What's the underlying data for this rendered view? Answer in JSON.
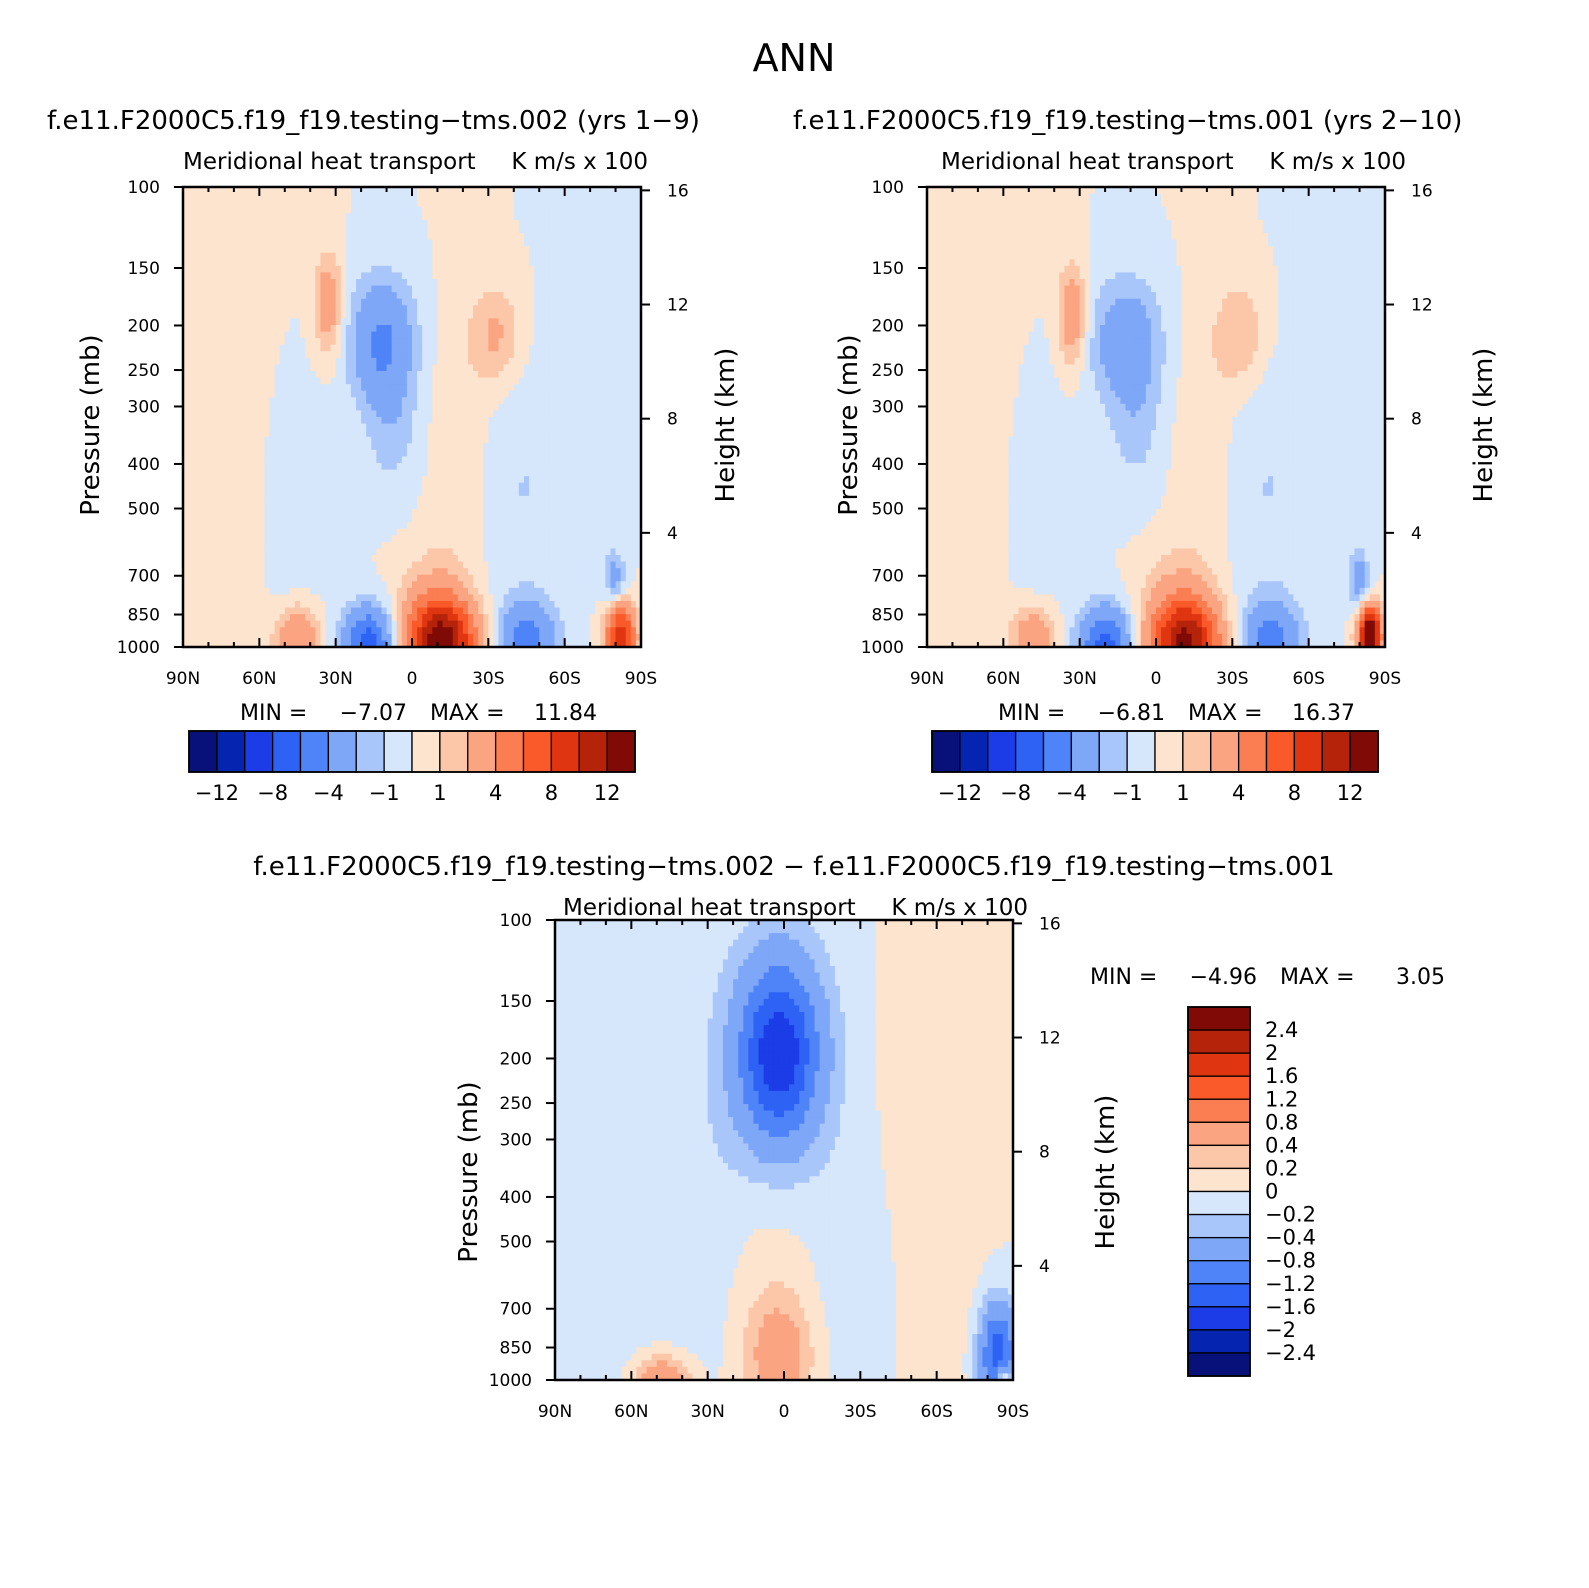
{
  "figure_title": "ANN",
  "colors": {
    "neg": [
      "#08107a",
      "#0524b0",
      "#1b3ce6",
      "#2e62f5",
      "#4f84f8",
      "#7ea7f8",
      "#a9c6fa",
      "#d6e6fb"
    ],
    "pos": [
      "#fde4cf",
      "#fcc6a8",
      "#fba482",
      "#fb7d52",
      "#fa5a2a",
      "#df3510",
      "#b5230a",
      "#7f0a06"
    ],
    "axis": "#000000"
  },
  "chart_data": [
    {
      "type": "heatmap",
      "title": "f.e11.F2000C5.f19_f19.testing−tms.002 (yrs 1−9)",
      "subtitle_left": "Meridional heat transport",
      "subtitle_right": "K m/s x 100",
      "ylabel": "Pressure (mb)",
      "ylabel_right": "Height (km)",
      "x_ticks": [
        "90N",
        "60N",
        "30N",
        "0",
        "30S",
        "60S",
        "90S"
      ],
      "x_range": [
        90,
        -90
      ],
      "y_ticks": [
        100,
        150,
        200,
        250,
        300,
        400,
        500,
        700,
        850,
        1000
      ],
      "y_range": [
        100,
        1000
      ],
      "y_scale": "log-pressure",
      "height_ticks": [
        4,
        8,
        12,
        16
      ],
      "min_label": "MIN =",
      "min_value": "−7.07",
      "max_label": "MAX =",
      "max_value": "11.84",
      "colorbar_levels": [
        -14,
        -12,
        -10,
        -8,
        -6,
        -4,
        -2,
        -1,
        0,
        1,
        2,
        4,
        6,
        8,
        10,
        12,
        14
      ],
      "colorbar_labels": [
        "−12",
        "−8",
        "−4",
        "−1",
        "1",
        "4",
        "8",
        "12"
      ],
      "colorbar_orientation": "horizontal",
      "features": [
        {
          "lat": 12,
          "p": 215,
          "value": -4.2,
          "wlat": 9,
          "wp": 0.22
        },
        {
          "lat": 8,
          "p": 330,
          "value": -1.4,
          "wlat": 8,
          "wp": 0.25
        },
        {
          "lat": 33,
          "p": 180,
          "value": 3.2,
          "wlat": 4,
          "wp": 0.18
        },
        {
          "lat": -33,
          "p": 210,
          "value": 2.2,
          "wlat": 7,
          "wp": 0.18
        },
        {
          "lat": -20,
          "p": 400,
          "value": 1.2,
          "wlat": 10,
          "wp": 0.5
        },
        {
          "lat": 50,
          "p": 500,
          "value": -1.2,
          "wlat": 10,
          "wp": 0.55
        },
        {
          "lat": -40,
          "p": 450,
          "value": -1.1,
          "wlat": 18,
          "wp": 0.45
        },
        {
          "lat": 70,
          "p": 450,
          "value": 1.1,
          "wlat": 16,
          "wp": 0.9
        },
        {
          "lat": 17,
          "p": 985,
          "value": -7.07,
          "wlat": 7,
          "wp": 0.13
        },
        {
          "lat": -12,
          "p": 975,
          "value": 11.84,
          "wlat": 9,
          "wp": 0.14
        },
        {
          "lat": -8,
          "p": 870,
          "value": 2.5,
          "wlat": 10,
          "wp": 0.22
        },
        {
          "lat": 45,
          "p": 960,
          "value": 4.2,
          "wlat": 6,
          "wp": 0.12
        },
        {
          "lat": -45,
          "p": 960,
          "value": -4.6,
          "wlat": 8,
          "wp": 0.13
        },
        {
          "lat": -82,
          "p": 950,
          "value": 9.5,
          "wlat": 4,
          "wp": 0.12
        },
        {
          "lat": -80,
          "p": 720,
          "value": -3.0,
          "wlat": 3,
          "wp": 0.1
        }
      ]
    },
    {
      "type": "heatmap",
      "title": "f.e11.F2000C5.f19_f19.testing−tms.001 (yrs 2−10)",
      "subtitle_left": "Meridional heat transport",
      "subtitle_right": "K m/s x 100",
      "ylabel": "Pressure (mb)",
      "ylabel_right": "Height (km)",
      "x_ticks": [
        "90N",
        "60N",
        "30N",
        "0",
        "30S",
        "60S",
        "90S"
      ],
      "x_range": [
        90,
        -90
      ],
      "y_ticks": [
        100,
        150,
        200,
        250,
        300,
        400,
        500,
        700,
        850,
        1000
      ],
      "y_range": [
        100,
        1000
      ],
      "y_scale": "log-pressure",
      "height_ticks": [
        4,
        8,
        12,
        16
      ],
      "min_label": "MIN =",
      "min_value": "−6.81",
      "max_label": "MAX =",
      "max_value": "16.37",
      "colorbar_levels": [
        -14,
        -12,
        -10,
        -8,
        -6,
        -4,
        -2,
        -1,
        0,
        1,
        2,
        4,
        6,
        8,
        10,
        12,
        14
      ],
      "colorbar_labels": [
        "−12",
        "−8",
        "−4",
        "−1",
        "1",
        "4",
        "8",
        "12"
      ],
      "colorbar_orientation": "horizontal",
      "features": [
        {
          "lat": 12,
          "p": 215,
          "value": -3.2,
          "wlat": 10,
          "wp": 0.22
        },
        {
          "lat": 8,
          "p": 330,
          "value": -1.3,
          "wlat": 8,
          "wp": 0.25
        },
        {
          "lat": 33,
          "p": 190,
          "value": 3.4,
          "wlat": 4,
          "wp": 0.18
        },
        {
          "lat": -33,
          "p": 210,
          "value": 2.0,
          "wlat": 7,
          "wp": 0.18
        },
        {
          "lat": -20,
          "p": 400,
          "value": 1.2,
          "wlat": 10,
          "wp": 0.5
        },
        {
          "lat": 50,
          "p": 500,
          "value": -1.2,
          "wlat": 10,
          "wp": 0.55
        },
        {
          "lat": -40,
          "p": 450,
          "value": -1.1,
          "wlat": 18,
          "wp": 0.45
        },
        {
          "lat": 70,
          "p": 450,
          "value": 1.1,
          "wlat": 16,
          "wp": 0.9
        },
        {
          "lat": 20,
          "p": 985,
          "value": -6.81,
          "wlat": 7,
          "wp": 0.13
        },
        {
          "lat": -12,
          "p": 975,
          "value": 10.5,
          "wlat": 9,
          "wp": 0.14
        },
        {
          "lat": -8,
          "p": 870,
          "value": 2.6,
          "wlat": 10,
          "wp": 0.22
        },
        {
          "lat": 48,
          "p": 960,
          "value": 3.8,
          "wlat": 6,
          "wp": 0.12
        },
        {
          "lat": -45,
          "p": 960,
          "value": -4.8,
          "wlat": 8,
          "wp": 0.13
        },
        {
          "lat": -84,
          "p": 950,
          "value": 16.37,
          "wlat": 3,
          "wp": 0.1
        },
        {
          "lat": -80,
          "p": 720,
          "value": -3.0,
          "wlat": 3,
          "wp": 0.1
        }
      ]
    },
    {
      "type": "heatmap",
      "title": "f.e11.F2000C5.f19_f19.testing−tms.002 − f.e11.F2000C5.f19_f19.testing−tms.001",
      "subtitle_left": "Meridional heat transport",
      "subtitle_right": "K m/s x 100",
      "ylabel": "Pressure (mb)",
      "ylabel_right": "Height (km)",
      "x_ticks": [
        "90N",
        "60N",
        "30N",
        "0",
        "30S",
        "60S",
        "90S"
      ],
      "x_range": [
        90,
        -90
      ],
      "y_ticks": [
        100,
        150,
        200,
        250,
        300,
        400,
        500,
        700,
        850,
        1000
      ],
      "y_range": [
        100,
        1000
      ],
      "y_scale": "log-pressure",
      "height_ticks": [
        4,
        8,
        12,
        16
      ],
      "min_label": "MIN =",
      "min_value": "−4.96",
      "max_label": "MAX =",
      "max_value": "3.05",
      "colorbar_levels": [
        -2.8,
        -2.4,
        -2,
        -1.6,
        -1.2,
        -0.8,
        -0.4,
        -0.2,
        0,
        0.2,
        0.4,
        0.8,
        1.2,
        1.6,
        2,
        2.4,
        2.8
      ],
      "colorbar_labels": [
        "2.4",
        "2",
        "1.6",
        "1.2",
        "0.8",
        "0.4",
        "0.2",
        "0",
        "−0.2",
        "−0.4",
        "−0.8",
        "−1.2",
        "−1.6",
        "−2",
        "−2.4"
      ],
      "colorbar_orientation": "vertical",
      "features": [
        {
          "lat": 2,
          "p": 195,
          "value": -1.4,
          "wlat": 10,
          "wp": 0.28
        },
        {
          "lat": 2,
          "p": 195,
          "value": -0.6,
          "wlat": 16,
          "wp": 0.45
        },
        {
          "lat": 8,
          "p": 600,
          "value": 0.15,
          "wlat": 16,
          "wp": 0.6
        },
        {
          "lat": 30,
          "p": 500,
          "value": -0.15,
          "wlat": 14,
          "wp": 0.7
        },
        {
          "lat": -30,
          "p": 600,
          "value": -0.15,
          "wlat": 14,
          "wp": 0.5
        },
        {
          "lat": -55,
          "p": 400,
          "value": 0.15,
          "wlat": 14,
          "wp": 0.8
        },
        {
          "lat": 65,
          "p": 400,
          "value": -0.15,
          "wlat": 10,
          "wp": 0.8
        },
        {
          "lat": 2,
          "p": 880,
          "value": 0.55,
          "wlat": 9,
          "wp": 0.2
        },
        {
          "lat": 48,
          "p": 985,
          "value": 0.7,
          "wlat": 8,
          "wp": 0.08
        },
        {
          "lat": -84,
          "p": 880,
          "value": -1.4,
          "wlat": 5,
          "wp": 0.18
        },
        {
          "lat": -86,
          "p": 990,
          "value": 1.0,
          "wlat": 2,
          "wp": 0.05
        }
      ]
    }
  ]
}
